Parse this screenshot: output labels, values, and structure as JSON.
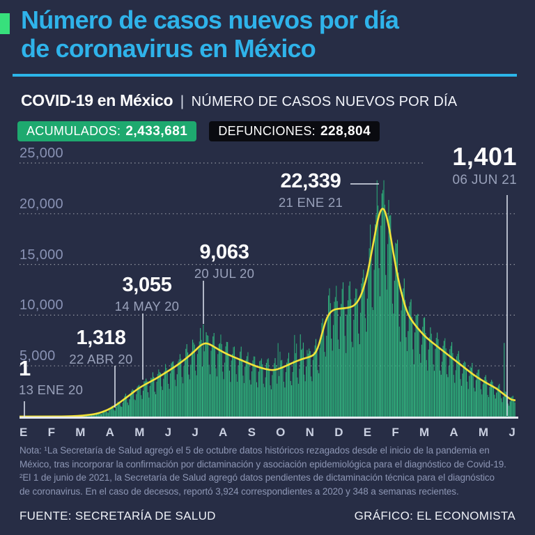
{
  "header": {
    "title_line1": "Número de casos nuevos por día",
    "title_line2": "de coronavirus en México",
    "subtitle_bold": "COVID-19 en México",
    "subtitle_sep": "|",
    "subtitle_rest": "NÚMERO DE CASOS NUEVOS POR DÍA",
    "badges": [
      {
        "label": "ACUMULADOS:",
        "value": "2,433,681",
        "color": "#1ea96f"
      },
      {
        "label": "DEFUNCIONES:",
        "value": "228,804",
        "color": "#0a0b10"
      }
    ]
  },
  "chart_data": {
    "type": "bar",
    "title": "Número de casos nuevos por día de coronavirus en México",
    "xlabel": "",
    "ylabel": "casos nuevos por día",
    "ylim": [
      0,
      26000
    ],
    "grid": "dotted horizontal",
    "x_range": {
      "start": "13 ENE 20",
      "end": "06 JUN 21",
      "days": 511
    },
    "month_labels": [
      "E",
      "F",
      "M",
      "A",
      "M",
      "J",
      "J",
      "A",
      "S",
      "O",
      "N",
      "D",
      "E",
      "F",
      "M",
      "A",
      "M",
      "J"
    ],
    "y_ticks": [
      {
        "label": "25,000",
        "value": 25000
      },
      {
        "label": "20,000",
        "value": 20000
      },
      {
        "label": "15,000",
        "value": 15000
      },
      {
        "label": "10,000",
        "value": 10000
      },
      {
        "label": "5,000",
        "value": 5000
      }
    ],
    "series": [
      {
        "name": "casos nuevos diarios",
        "type": "bar",
        "color": "#2aa876"
      },
      {
        "name": "tendencia suavizada",
        "type": "line",
        "color": "#f2e23a"
      }
    ],
    "trend_keypoints": [
      [
        0,
        1
      ],
      [
        30,
        4
      ],
      [
        48,
        15
      ],
      [
        60,
        60
      ],
      [
        70,
        140
      ],
      [
        79,
        260
      ],
      [
        90,
        600
      ],
      [
        100,
        1150
      ],
      [
        109,
        1800
      ],
      [
        116,
        2300
      ],
      [
        122,
        2750
      ],
      [
        130,
        3200
      ],
      [
        140,
        3700
      ],
      [
        150,
        4300
      ],
      [
        160,
        4900
      ],
      [
        170,
        5600
      ],
      [
        180,
        6400
      ],
      [
        186,
        7000
      ],
      [
        191,
        7250
      ],
      [
        196,
        7150
      ],
      [
        205,
        6600
      ],
      [
        215,
        6100
      ],
      [
        225,
        5700
      ],
      [
        235,
        5300
      ],
      [
        245,
        4900
      ],
      [
        255,
        4650
      ],
      [
        262,
        4550
      ],
      [
        270,
        4800
      ],
      [
        278,
        5150
      ],
      [
        285,
        5450
      ],
      [
        292,
        5700
      ],
      [
        298,
        5850
      ],
      [
        304,
        6100
      ],
      [
        308,
        6900
      ],
      [
        312,
        8300
      ],
      [
        316,
        9600
      ],
      [
        320,
        10300
      ],
      [
        325,
        10600
      ],
      [
        332,
        10650
      ],
      [
        340,
        10750
      ],
      [
        346,
        11000
      ],
      [
        352,
        11900
      ],
      [
        358,
        13800
      ],
      [
        363,
        16300
      ],
      [
        368,
        18900
      ],
      [
        371,
        20100
      ],
      [
        374,
        20600
      ],
      [
        377,
        20200
      ],
      [
        381,
        18600
      ],
      [
        385,
        16200
      ],
      [
        390,
        13600
      ],
      [
        395,
        11600
      ],
      [
        400,
        10100
      ],
      [
        406,
        9200
      ],
      [
        413,
        8400
      ],
      [
        420,
        7700
      ],
      [
        428,
        7100
      ],
      [
        436,
        6500
      ],
      [
        444,
        5900
      ],
      [
        452,
        5300
      ],
      [
        460,
        4700
      ],
      [
        468,
        4100
      ],
      [
        476,
        3600
      ],
      [
        484,
        3150
      ],
      [
        491,
        2800
      ],
      [
        497,
        2350
      ],
      [
        503,
        1900
      ],
      [
        507,
        1650
      ],
      [
        511,
        1600
      ]
    ],
    "weekday_factors": [
      0.6,
      0.88,
      1.06,
      1.14,
      1.18,
      1.04,
      0.7
    ],
    "spike_multipliers": {
      "266": 1.55,
      "268": 1.35,
      "283": 1.5,
      "285": 1.32,
      "289": 1.45,
      "292": 1.28,
      "499": 3.3
    },
    "value_overrides": {
      "100": 1318,
      "122": 3055,
      "189": 9063,
      "374": 22339,
      "510": 1401
    },
    "annotations": [
      {
        "value": "1",
        "date": "13 ENE 20"
      },
      {
        "value": "1,318",
        "date": "22 ABR 20"
      },
      {
        "value": "3,055",
        "date": "14 MAY 20"
      },
      {
        "value": "9,063",
        "date": "20 JUL 20"
      },
      {
        "value": "22,339",
        "date": "21 ENE 21"
      },
      {
        "value": "1,401",
        "date": "06 JUN 21"
      }
    ]
  },
  "note": {
    "lines": [
      "Nota: ¹La Secretaría de Salud agregó el 5 de octubre datos históricos rezagados desde el inicio de la pandemia en",
      "México, tras incorporar la confirmación por dictaminación y asociación epidemiológica para el diagnóstico de Covid-19.",
      "²El 1 de junio de 2021, la Secretaría de Salud agregó datos pendientes de dictaminación técnica para el diagnóstico",
      "de coronavirus. En el caso de decesos, reportó 3,924 correspondientes a 2020 y 348 a semanas recientes."
    ]
  },
  "footer": {
    "source": "FUENTE: SECRETARÍA DE SALUD",
    "credit": "GRÁFICO: EL ECONOMISTA"
  },
  "colors": {
    "background": "#272d45",
    "title_cyan": "#2fb3ea",
    "bullet_green": "#37e07c",
    "bar_green": "#2aa876",
    "bar_green_bright": "#33bb82",
    "trend_yellow": "#f2e23a",
    "badge_green": "#1ea96f",
    "badge_black": "#0a0b10",
    "gridline": "rgba(255,255,255,0.5)",
    "axis_labels": "#8992b4"
  }
}
